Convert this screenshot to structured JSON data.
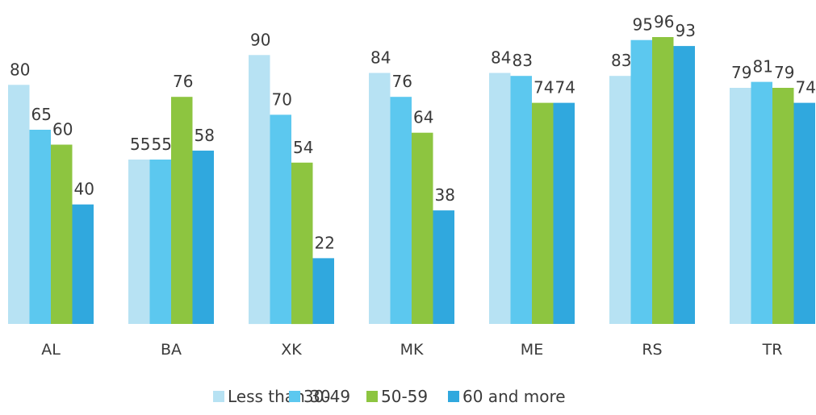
{
  "chart_data": {
    "type": "bar",
    "title": "",
    "xlabel": "",
    "ylabel": "",
    "categories": [
      "AL",
      "BA",
      "XK",
      "MK",
      "ME",
      "RS",
      "TR"
    ],
    "ylim": [
      0,
      100
    ],
    "grid": false,
    "legend_position": "bottom",
    "series": [
      {
        "name": "Less than 30",
        "color": "#b7e2f3",
        "values": [
          80,
          55,
          90,
          84,
          84,
          83,
          79
        ]
      },
      {
        "name": "30-49",
        "color": "#5cc8ef",
        "values": [
          65,
          55,
          70,
          76,
          83,
          95,
          81
        ]
      },
      {
        "name": "50-59",
        "color": "#8dc540",
        "values": [
          60,
          76,
          54,
          64,
          74,
          96,
          79
        ]
      },
      {
        "name": "60 and more",
        "color": "#30a8de",
        "values": [
          40,
          58,
          22,
          38,
          74,
          93,
          74
        ]
      }
    ]
  }
}
